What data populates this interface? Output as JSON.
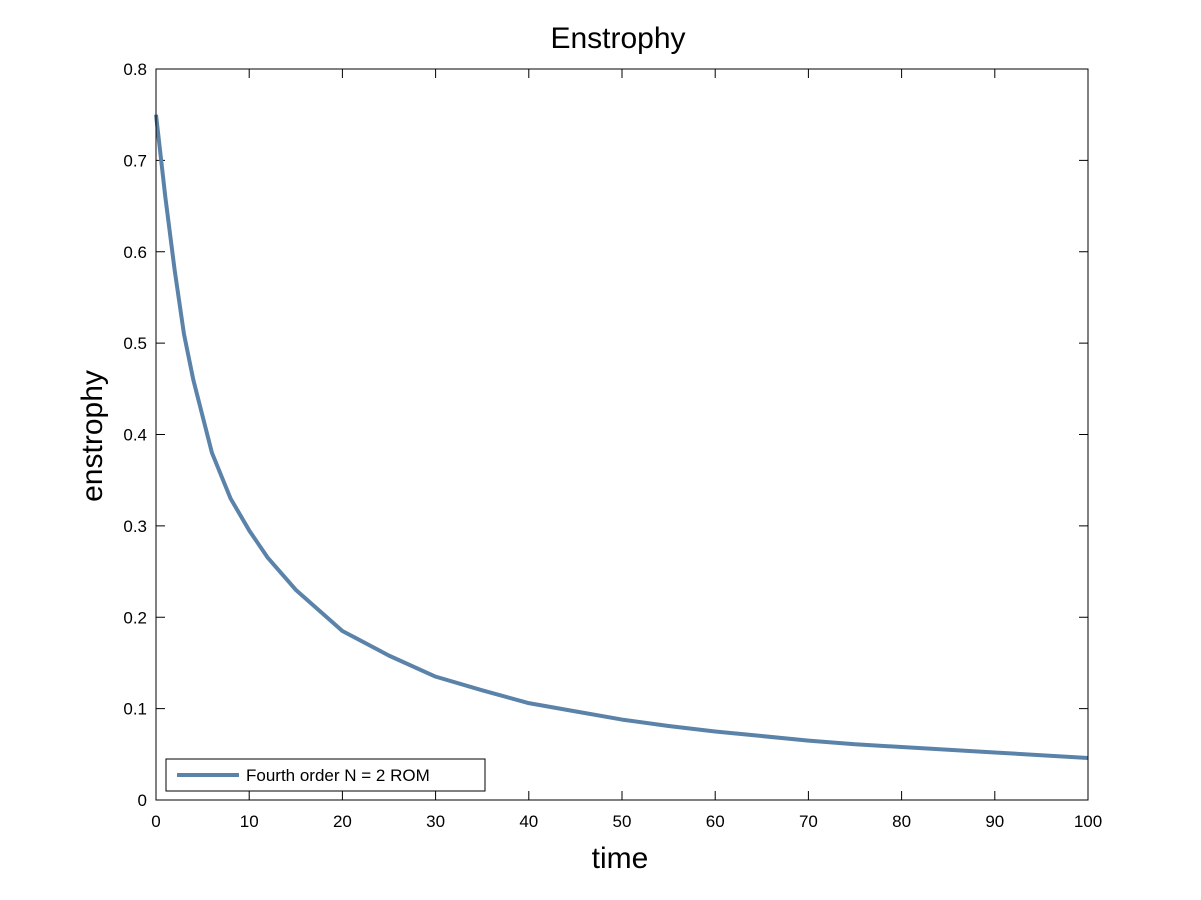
{
  "chart_data": {
    "type": "line",
    "title": "Enstrophy",
    "xlabel": "time",
    "ylabel": "enstrophy",
    "xlim": [
      0,
      100
    ],
    "ylim": [
      0,
      0.8
    ],
    "x_ticks": [
      0,
      10,
      20,
      30,
      40,
      50,
      60,
      70,
      80,
      90,
      100
    ],
    "x_tick_labels": [
      "0",
      "10",
      "20",
      "30",
      "40",
      "50",
      "60",
      "70",
      "80",
      "90",
      "100"
    ],
    "y_ticks": [
      0,
      0.1,
      0.2,
      0.3,
      0.4,
      0.5,
      0.6,
      0.7,
      0.8
    ],
    "y_tick_labels": [
      "0",
      "0.1",
      "0.2",
      "0.3",
      "0.4",
      "0.5",
      "0.6",
      "0.7",
      "0.8"
    ],
    "grid": false,
    "legend_position": "bottom-left",
    "series": [
      {
        "name": "Fourth order N = 2 ROM",
        "color": "#5b83aa",
        "x": [
          0,
          1,
          2,
          3,
          4,
          5,
          6,
          8,
          10,
          12,
          15,
          20,
          25,
          30,
          35,
          40,
          45,
          50,
          55,
          60,
          65,
          70,
          75,
          80,
          85,
          90,
          95,
          100
        ],
        "y": [
          0.75,
          0.66,
          0.58,
          0.51,
          0.46,
          0.42,
          0.38,
          0.33,
          0.295,
          0.265,
          0.23,
          0.185,
          0.158,
          0.135,
          0.12,
          0.106,
          0.097,
          0.088,
          0.081,
          0.075,
          0.07,
          0.065,
          0.061,
          0.058,
          0.055,
          0.052,
          0.049,
          0.046
        ]
      }
    ]
  }
}
